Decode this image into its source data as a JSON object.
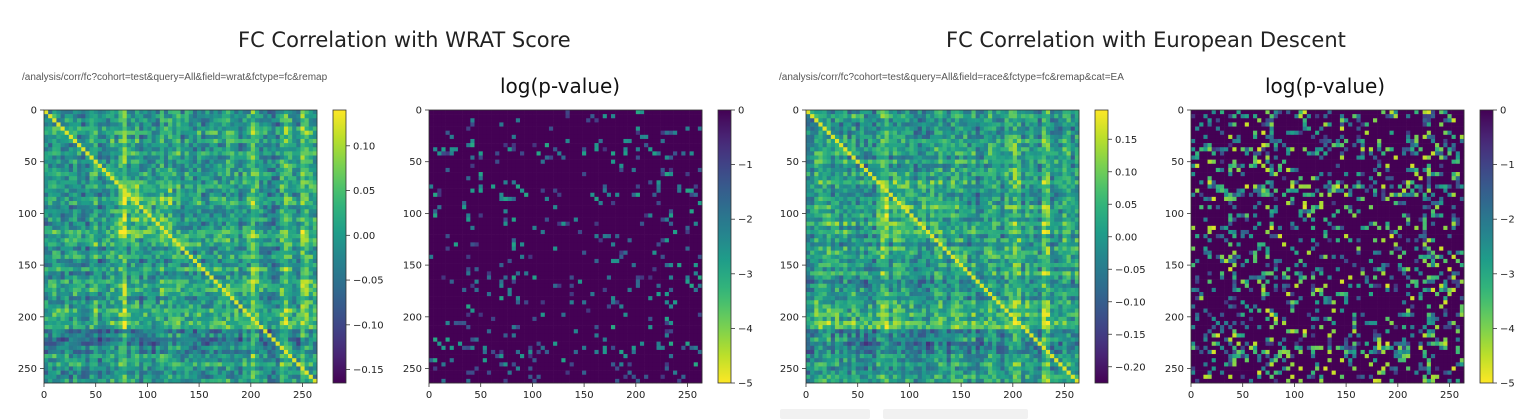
{
  "panels": [
    {
      "title": "FC Correlation with WRAT Score",
      "url": "/analysis/corr/fc?cohort=test&query=All&field=wrat&fctype=fc&remap"
    },
    {
      "title": "FC Correlation with European Descent",
      "url": "/analysis/corr/fc?cohort=test&query=All&field=race&fctype=fc&remap&cat=EA"
    }
  ],
  "chart_data": [
    {
      "type": "heatmap",
      "title": "",
      "colormap": "viridis",
      "x_ticks": [
        0,
        50,
        100,
        150,
        200,
        250
      ],
      "y_ticks": [
        0,
        50,
        100,
        150,
        200,
        250
      ],
      "xlim": [
        0,
        264
      ],
      "ylim": [
        264,
        0
      ],
      "colorbar": {
        "ticks": [
          "0.10",
          "0.05",
          "0.00",
          "−0.05",
          "−0.10",
          "−0.15"
        ],
        "tick_values": [
          0.1,
          0.05,
          0.0,
          -0.05,
          -0.1,
          -0.15
        ],
        "range": [
          -0.165,
          0.14
        ]
      }
    },
    {
      "type": "heatmap",
      "title": "log(p-value)",
      "colormap": "viridis_r",
      "x_ticks": [
        0,
        50,
        100,
        150,
        200,
        250
      ],
      "y_ticks": [
        0,
        50,
        100,
        150,
        200,
        250
      ],
      "xlim": [
        0,
        264
      ],
      "ylim": [
        264,
        0
      ],
      "colorbar": {
        "ticks": [
          "0",
          "−1",
          "−2",
          "−3",
          "−4",
          "−5"
        ],
        "tick_values": [
          0,
          -1,
          -2,
          -3,
          -4,
          -5
        ],
        "range": [
          -5,
          0
        ]
      }
    },
    {
      "type": "heatmap",
      "title": "",
      "colormap": "viridis",
      "x_ticks": [
        0,
        50,
        100,
        150,
        200,
        250
      ],
      "y_ticks": [
        0,
        50,
        100,
        150,
        200,
        250
      ],
      "xlim": [
        0,
        264
      ],
      "ylim": [
        264,
        0
      ],
      "colorbar": {
        "ticks": [
          "0.15",
          "0.10",
          "0.05",
          "0.00",
          "−0.05",
          "−0.10",
          "−0.15",
          "−0.20"
        ],
        "tick_values": [
          0.15,
          0.1,
          0.05,
          0.0,
          -0.05,
          -0.1,
          -0.15,
          -0.2
        ],
        "range": [
          -0.225,
          0.195
        ]
      }
    },
    {
      "type": "heatmap",
      "title": "log(p-value)",
      "colormap": "viridis_r",
      "x_ticks": [
        0,
        50,
        100,
        150,
        200,
        250
      ],
      "y_ticks": [
        0,
        50,
        100,
        150,
        200,
        250
      ],
      "xlim": [
        0,
        264
      ],
      "ylim": [
        264,
        0
      ],
      "colorbar": {
        "ticks": [
          "0",
          "−1",
          "−2",
          "−3",
          "−4",
          "−5"
        ],
        "tick_values": [
          0,
          -1,
          -2,
          -3,
          -4,
          -5
        ],
        "range": [
          -5,
          0
        ]
      }
    }
  ]
}
